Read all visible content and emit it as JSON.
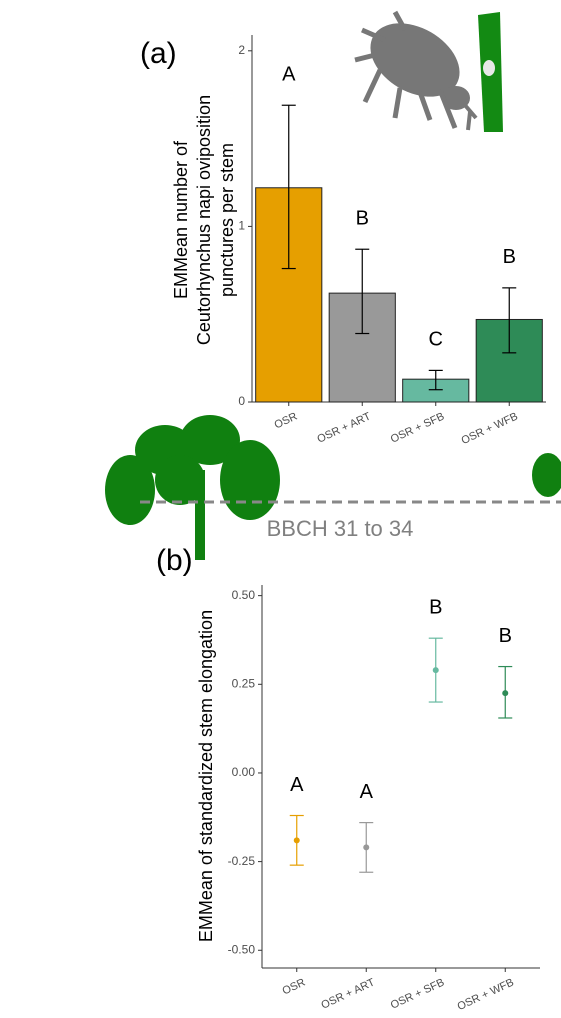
{
  "chart_data": [
    {
      "type": "bar",
      "panel_label": "(a)",
      "ylabel": [
        "EMMean number of",
        "Ceutorhynchus napi oviposition",
        "punctures per stem"
      ],
      "categories": [
        "OSR",
        "OSR + ART",
        "OSR + SFB",
        "OSR + WFB"
      ],
      "values": [
        1.22,
        0.62,
        0.13,
        0.47
      ],
      "lower": [
        0.76,
        0.39,
        0.07,
        0.28
      ],
      "upper": [
        1.69,
        0.87,
        0.18,
        0.65
      ],
      "letters": [
        "A",
        "B",
        "C",
        "B"
      ],
      "colors": [
        "#e69f00",
        "#999999",
        "#66b9a0",
        "#2e8b57"
      ],
      "ylim": [
        0,
        2.09
      ],
      "yticks": [
        0,
        1,
        2
      ],
      "annotation": "BBCH 31 to 34"
    },
    {
      "type": "point",
      "panel_label": "(b)",
      "ylabel": [
        "EMMean of standardized stem elongation"
      ],
      "categories": [
        "OSR",
        "OSR + ART",
        "OSR + SFB",
        "OSR + WFB"
      ],
      "values": [
        -0.19,
        -0.21,
        0.29,
        0.225
      ],
      "lower": [
        -0.26,
        -0.28,
        0.2,
        0.155
      ],
      "upper": [
        -0.12,
        -0.14,
        0.38,
        0.3
      ],
      "letters": [
        "A",
        "A",
        "B",
        "B"
      ],
      "colors": [
        "#e69f00",
        "#999999",
        "#66b9a0",
        "#2e8b57"
      ],
      "ylim": [
        -0.55,
        0.53
      ],
      "yticks": [
        {
          "value": -0.5,
          "label": "-0.50"
        },
        {
          "value": -0.25,
          "label": "-0.25"
        },
        {
          "value": 0,
          "label": "0.00"
        },
        {
          "value": 0.25,
          "label": "0.25"
        },
        {
          "value": 0.5,
          "label": "0.50"
        }
      ]
    }
  ]
}
